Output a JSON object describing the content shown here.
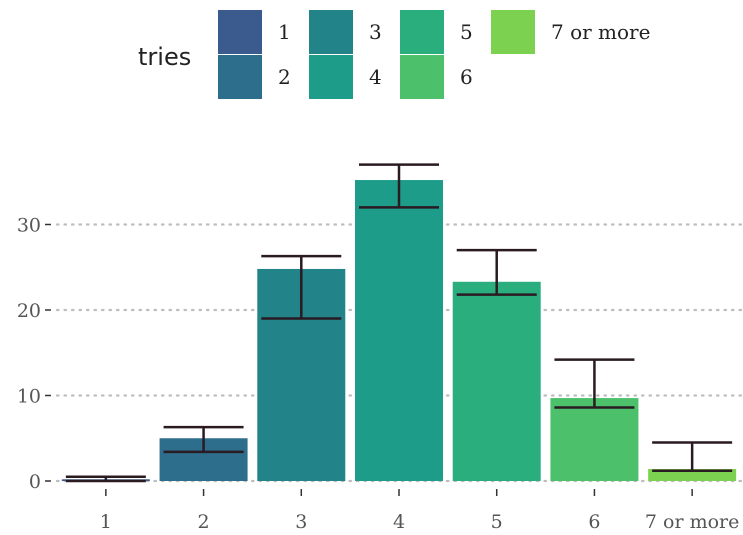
{
  "chart_data": {
    "type": "bar",
    "categories": [
      "1",
      "2",
      "3",
      "4",
      "5",
      "6",
      "7 or more"
    ],
    "values": [
      0.2,
      5.0,
      24.8,
      35.2,
      23.3,
      9.7,
      1.4
    ],
    "error_bars": [
      {
        "low": 0.0,
        "high": 0.5
      },
      {
        "low": 3.4,
        "high": 6.3
      },
      {
        "low": 19.0,
        "high": 26.3
      },
      {
        "low": 32.0,
        "high": 37.0
      },
      {
        "low": 21.8,
        "high": 27.0
      },
      {
        "low": 8.6,
        "high": 14.2
      },
      {
        "low": 1.2,
        "high": 4.5
      }
    ],
    "colors": [
      "#3B5A8E",
      "#2C6E8B",
      "#228489",
      "#1E9C8A",
      "#2AAE7D",
      "#4CC06A",
      "#7DD151"
    ],
    "title": "",
    "xlabel": "",
    "ylabel": "",
    "ylim": [
      0,
      38
    ],
    "yticks": [
      0,
      10,
      20,
      30
    ],
    "grid": "horizontal-dotted",
    "legend": {
      "title": "tries",
      "position": "top",
      "items": [
        "1",
        "2",
        "3",
        "4",
        "5",
        "6",
        "7 or more"
      ]
    }
  }
}
